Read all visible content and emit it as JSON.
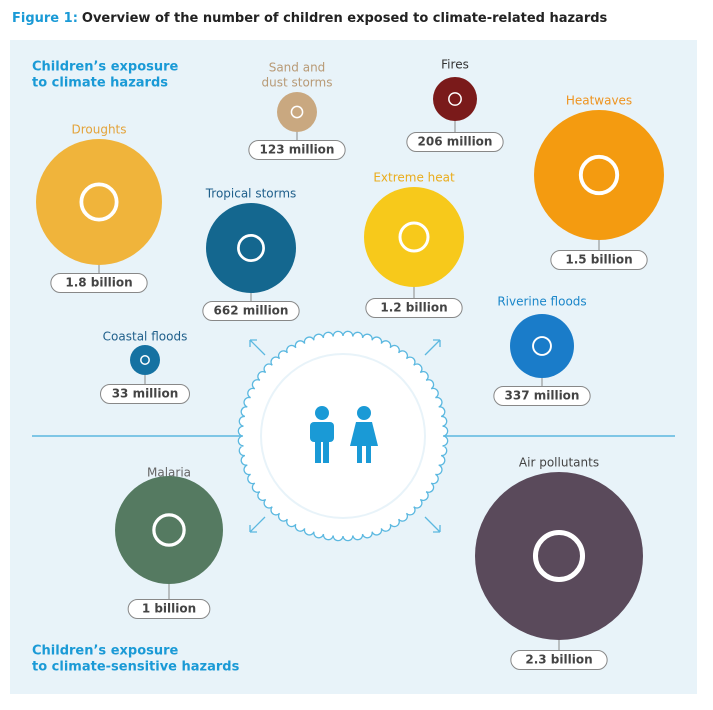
{
  "title": {
    "prefix": "Figure 1:",
    "text": "Overview of the number of children exposed to climate-related hazards"
  },
  "sections": [
    {
      "lines": [
        "Children’s exposure",
        "to climate hazards"
      ]
    },
    {
      "lines": [
        "Children’s exposure",
        "to climate-sensitive hazards"
      ]
    }
  ],
  "nodes": [
    {
      "label": [
        "Droughts"
      ],
      "value": "1.8 billion",
      "color": "#f0b43b",
      "label_color": "#e3a33a"
    },
    {
      "label": [
        "Sand and",
        "dust storms"
      ],
      "value": "123 million",
      "color": "#c9a880",
      "label_color": "#b89a76"
    },
    {
      "label": [
        "Fires"
      ],
      "value": "206 million",
      "color": "#7a1a1a",
      "label_color": "#333333"
    },
    {
      "label": [
        "Heatwaves"
      ],
      "value": "1.5 billion",
      "color": "#f49b10",
      "label_color": "#ee9420"
    },
    {
      "label": [
        "Tropical storms"
      ],
      "value": "662 million",
      "color": "#14678f",
      "label_color": "#1f5f8b"
    },
    {
      "label": [
        "Extreme heat"
      ],
      "value": "1.2 billion",
      "color": "#f7c91b",
      "label_color": "#eaac1c"
    },
    {
      "label": [
        "Riverine floods"
      ],
      "value": "337 million",
      "color": "#1a7cc9",
      "label_color": "#1a86c9"
    },
    {
      "label": [
        "Coastal floods"
      ],
      "value": "33 million",
      "color": "#1572a2",
      "label_color": "#1f5f8b"
    },
    {
      "label": [
        "Malaria"
      ],
      "value": "1 billion",
      "color": "#557a61",
      "label_color": "#666666"
    },
    {
      "label": [
        "Air pollutants"
      ],
      "value": "2.3 billion",
      "color": "#5a4a5b",
      "label_color": "#444444"
    }
  ]
}
